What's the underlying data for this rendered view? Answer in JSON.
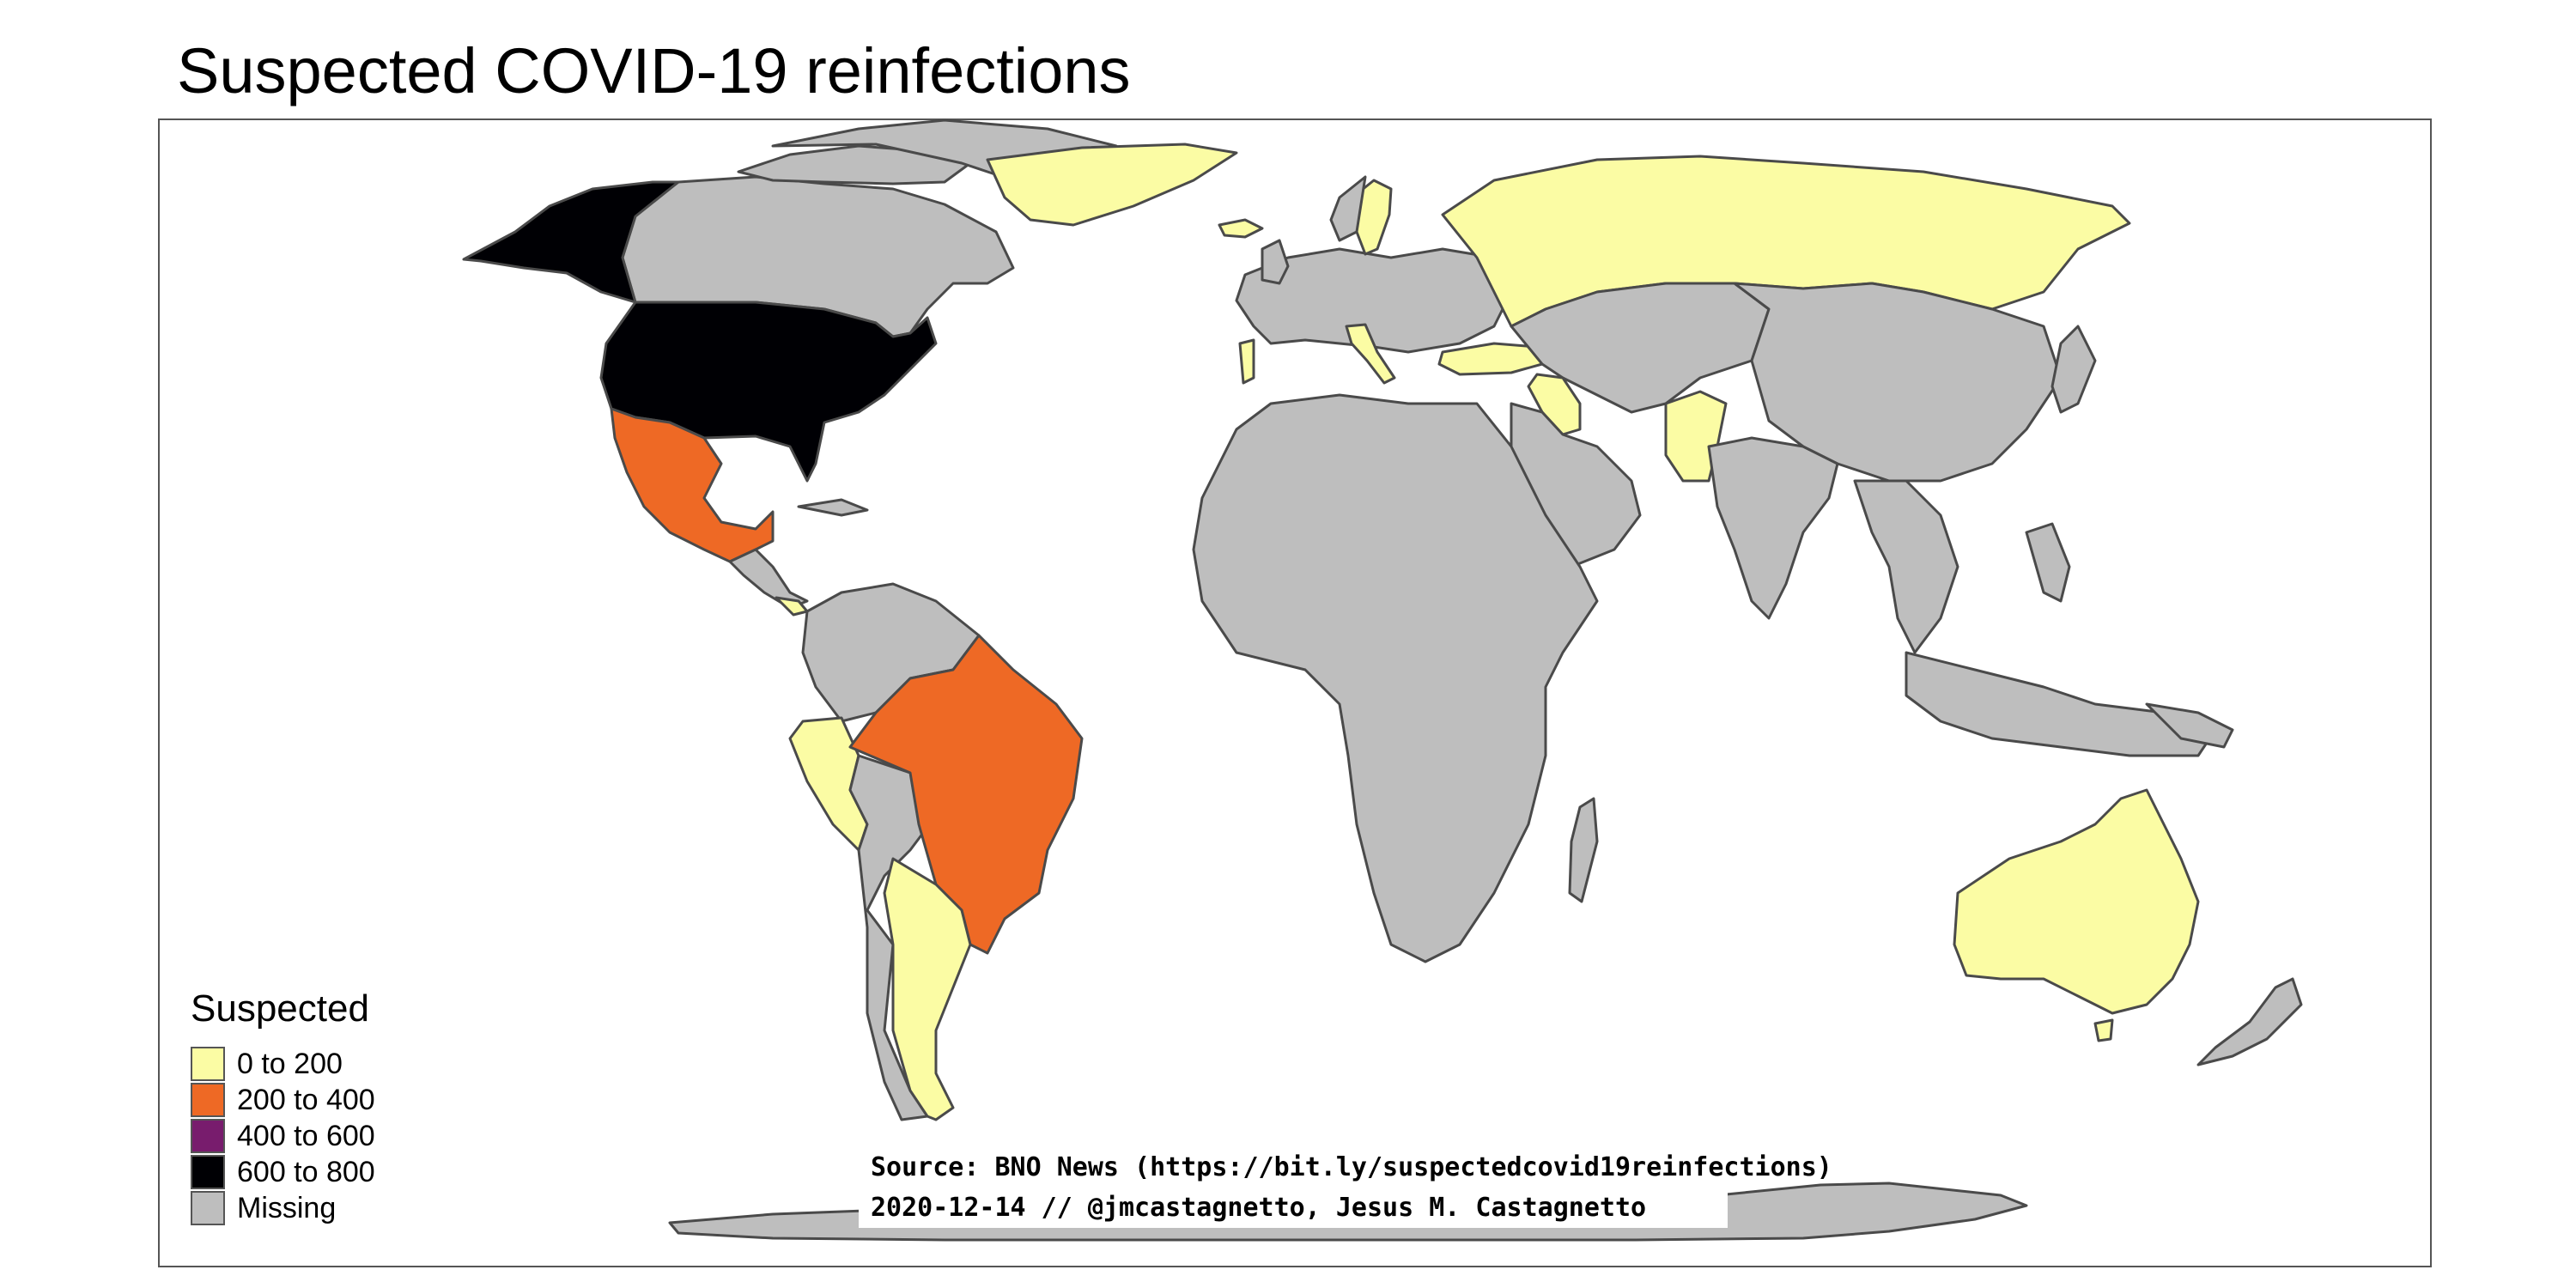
{
  "title": "Suspected COVID-19 reinfections",
  "legend": {
    "title": "Suspected",
    "items": [
      {
        "label": "0 to 200",
        "color": "#fbfca4"
      },
      {
        "label": "200 to 400",
        "color": "#ee6925"
      },
      {
        "label": "400 to 600",
        "color": "#781c6d"
      },
      {
        "label": "600 to 800",
        "color": "#000004"
      },
      {
        "label": "Missing",
        "color": "#bebebe"
      }
    ]
  },
  "colors": {
    "water": "#ffffff",
    "missing": "#bebebe",
    "border": "#4a4a4a"
  },
  "credits": {
    "source": "Source: BNO News (https://bit.ly/suspectedcovid19reinfections)",
    "date_author": "2020-12-14 // @jmcastagnetto, Jesus M. Castagnetto"
  },
  "map_data": {
    "category_0_200": [
      "Greenland",
      "Iceland",
      "Portugal",
      "Italy",
      "Sweden",
      "Russia",
      "Turkey",
      "Iraq",
      "Pakistan",
      "Panama",
      "Peru",
      "Argentina",
      "Australia"
    ],
    "category_200_400": [
      "Mexico",
      "Brazil"
    ],
    "category_400_600": [],
    "category_600_800": [
      "United States"
    ]
  }
}
